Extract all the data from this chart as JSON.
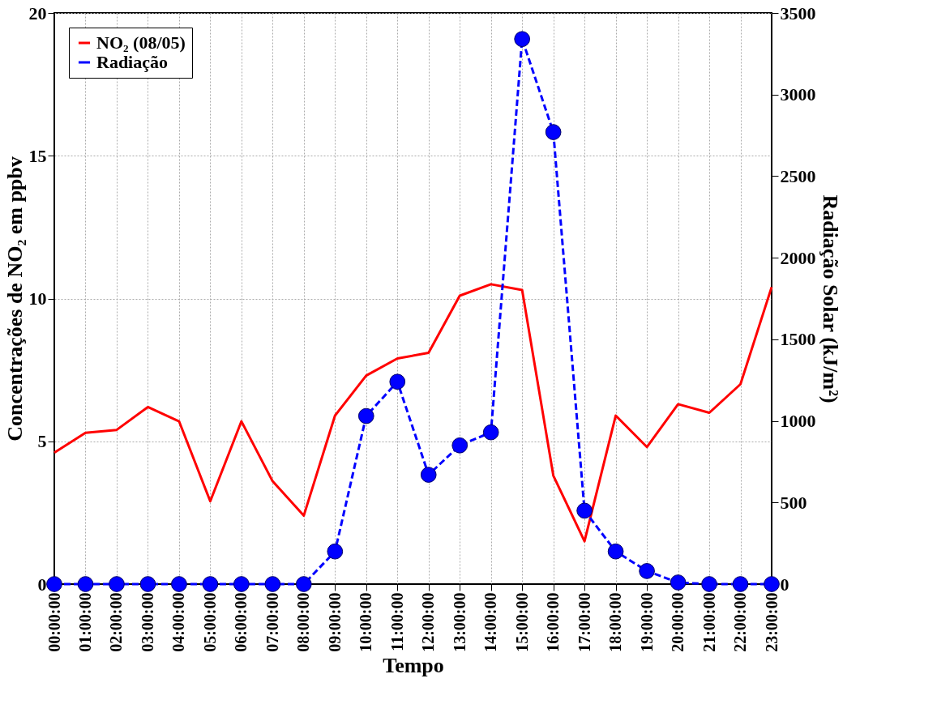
{
  "chart_data": {
    "type": "line",
    "xlabel": "Tempo",
    "ylabel": "Concentrações de NO₂ em ppbv",
    "y2label": "Radiação Solar (kJ/m²)",
    "x": [
      0,
      1,
      2,
      3,
      4,
      5,
      6,
      7,
      8,
      9,
      10,
      11,
      12,
      13,
      14,
      15,
      16,
      17,
      18,
      19,
      20,
      21,
      22,
      23
    ],
    "xlim": [
      0,
      23
    ],
    "xticks": [
      {
        "value": 0,
        "label": "00:00:00"
      },
      {
        "value": 1,
        "label": "01:00:00"
      },
      {
        "value": 2,
        "label": "02:00:00"
      },
      {
        "value": 3,
        "label": "03:00:00"
      },
      {
        "value": 4,
        "label": "04:00:00"
      },
      {
        "value": 5,
        "label": "05:00:00"
      },
      {
        "value": 6,
        "label": "06:00:00"
      },
      {
        "value": 7,
        "label": "07:00:00"
      },
      {
        "value": 8,
        "label": "08:00:00"
      },
      {
        "value": 9,
        "label": "09:00:00"
      },
      {
        "value": 10,
        "label": "10:00:00"
      },
      {
        "value": 11,
        "label": "11:00:00"
      },
      {
        "value": 12,
        "label": "12:00:00"
      },
      {
        "value": 13,
        "label": "13:00:00"
      },
      {
        "value": 14,
        "label": "14:00:00"
      },
      {
        "value": 15,
        "label": "15:00:00"
      },
      {
        "value": 16,
        "label": "16:00:00"
      },
      {
        "value": 17,
        "label": "17:00:00"
      },
      {
        "value": 18,
        "label": "18:00:00"
      },
      {
        "value": 19,
        "label": "19:00:00"
      },
      {
        "value": 20,
        "label": "20:00:00"
      },
      {
        "value": 21,
        "label": "21:00:00"
      },
      {
        "value": 22,
        "label": "22:00:00"
      },
      {
        "value": 23,
        "label": "23:00:00"
      }
    ],
    "ylim": [
      0,
      20
    ],
    "yticks": [
      0,
      5,
      10,
      15,
      20
    ],
    "y2lim": [
      0,
      3500
    ],
    "y2ticks": [
      0,
      500,
      1000,
      1500,
      2000,
      2500,
      3000,
      3500
    ],
    "grid": true,
    "legend": "top left",
    "series": [
      {
        "name": "NO₂ (08/05)",
        "color": "#ff0000",
        "line_style": "solid",
        "marker": "none",
        "values": [
          4.6,
          5.3,
          5.4,
          6.2,
          5.7,
          2.9,
          5.7,
          3.6,
          2.4,
          5.9,
          7.3,
          7.9,
          8.1,
          10.1,
          10.5,
          10.3,
          3.8,
          1.5,
          5.9,
          4.8,
          6.3,
          6.0,
          7.0,
          10.4
        ]
      },
      {
        "name": "Radiação",
        "color": "#0000ff",
        "axis": "y2",
        "line_style": "dashed",
        "marker": "circle",
        "values": [
          0,
          0,
          0,
          0,
          0,
          0,
          0,
          0,
          0,
          200,
          1030,
          1240,
          670,
          850,
          930,
          3340,
          2770,
          450,
          200,
          80,
          10,
          0,
          0,
          0
        ]
      }
    ]
  }
}
